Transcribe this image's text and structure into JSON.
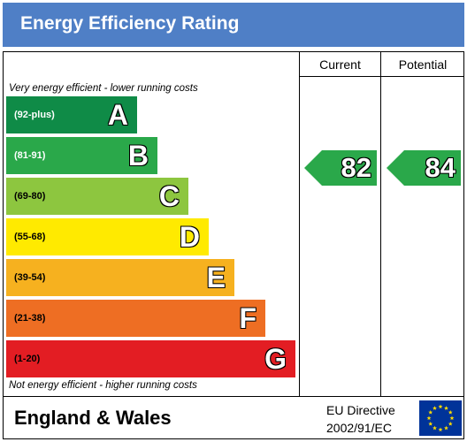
{
  "header": {
    "title": "Energy Efficiency Rating"
  },
  "columns": {
    "current": "Current",
    "potential": "Potential"
  },
  "notes": {
    "top": "Very energy efficient - lower running costs",
    "bottom": "Not energy efficient - higher running costs"
  },
  "chart_data": {
    "type": "bar",
    "title": "Energy Efficiency Rating",
    "categories": [
      "A",
      "B",
      "C",
      "D",
      "E",
      "F",
      "G"
    ],
    "ranges": [
      "(92-plus)",
      "(81-91)",
      "(69-80)",
      "(55-68)",
      "(39-54)",
      "(21-38)",
      "(1-20)"
    ],
    "colors": [
      "#0f8b47",
      "#2aa84a",
      "#8dc63f",
      "#ffea00",
      "#f6b11f",
      "#ee6e23",
      "#e31d23"
    ],
    "current": {
      "value": 82,
      "band": "B",
      "color": "#2aa84a"
    },
    "potential": {
      "value": 84,
      "band": "B",
      "color": "#2aa84a"
    }
  },
  "footer": {
    "region": "England & Wales",
    "directive_line1": "EU Directive",
    "directive_line2": "2002/91/EC",
    "flag_icon": "eu-flag-icon",
    "flag_color": "#003399",
    "star_color": "#ffdd00"
  }
}
